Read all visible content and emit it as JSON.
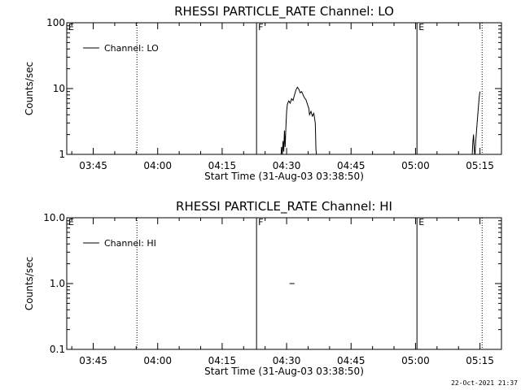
{
  "footer": {
    "timestamp": "22-Oct-2021 21:37"
  },
  "chart_data": [
    {
      "type": "line",
      "title": "RHESSI PARTICLE_RATE Channel: LO",
      "xlabel": "Start Time (31-Aug-03 03:38:50)",
      "ylabel": "Counts/sec",
      "yscale": "log",
      "ylim": [
        1,
        100
      ],
      "y_ticks": [
        1,
        10,
        100
      ],
      "y_tick_labels": [
        "1",
        "10",
        "100"
      ],
      "xlim": [
        "03:38:50",
        "05:20:00"
      ],
      "x_ticks": [
        "03:45",
        "04:00",
        "04:15",
        "04:30",
        "04:45",
        "05:00",
        "05:15"
      ],
      "legend": {
        "position": "top-left",
        "entries": [
          "Channel: LO"
        ]
      },
      "annotations": [
        {
          "time": "03:38:50",
          "label": "E",
          "style": "solid"
        },
        {
          "time": "03:55:10",
          "label": "",
          "style": "dotted"
        },
        {
          "time": "04:23:00",
          "label": "F",
          "style": "solid"
        },
        {
          "time": "05:00:20",
          "label": "E",
          "style": "solid"
        },
        {
          "time": "05:15:30",
          "label": "",
          "style": "dotted"
        }
      ],
      "series": [
        {
          "segments": [
            [
              [
                "04:28:40",
                0.9
              ],
              [
                "04:28:50",
                1.3
              ],
              [
                "04:29:00",
                1.0
              ],
              [
                "04:29:10",
                1.6
              ],
              [
                "04:29:20",
                1.1
              ],
              [
                "04:29:30",
                2.3
              ],
              [
                "04:29:40",
                1.3
              ],
              [
                "04:29:50",
                2.6
              ],
              [
                "04:30:00",
                4.5
              ],
              [
                "04:30:10",
                5.8
              ],
              [
                "04:30:30",
                6.5
              ],
              [
                "04:30:50",
                6.0
              ],
              [
                "04:31:10",
                7.0
              ],
              [
                "04:31:30",
                6.6
              ],
              [
                "04:31:50",
                8.0
              ],
              [
                "04:32:10",
                9.5
              ],
              [
                "04:32:30",
                10.5
              ],
              [
                "04:32:50",
                9.8
              ],
              [
                "04:33:10",
                8.6
              ],
              [
                "04:33:30",
                9.0
              ],
              [
                "04:33:50",
                8.0
              ],
              [
                "04:34:10",
                7.2
              ],
              [
                "04:34:30",
                6.8
              ],
              [
                "04:34:50",
                5.8
              ],
              [
                "04:35:10",
                5.0
              ],
              [
                "04:35:20",
                4.0
              ],
              [
                "04:35:40",
                4.5
              ],
              [
                "04:36:00",
                3.8
              ],
              [
                "04:36:20",
                4.2
              ],
              [
                "04:36:40",
                3.0
              ],
              [
                "04:36:50",
                1.2
              ],
              [
                "04:37:00",
                0.9
              ]
            ],
            [
              [
                "05:13:10",
                0.9
              ],
              [
                "05:13:20",
                1.5
              ],
              [
                "05:13:30",
                2.0
              ],
              [
                "05:13:40",
                1.2
              ],
              [
                "05:13:50",
                0.9
              ],
              [
                "05:14:00",
                1.5
              ],
              [
                "05:14:20",
                3.0
              ],
              [
                "05:14:40",
                5.5
              ],
              [
                "05:14:50",
                7.5
              ],
              [
                "05:15:00",
                9.0
              ]
            ]
          ]
        }
      ]
    },
    {
      "type": "line",
      "title": "RHESSI PARTICLE_RATE Channel: HI",
      "xlabel": "Start Time (31-Aug-03 03:38:50)",
      "ylabel": "Counts/sec",
      "yscale": "log",
      "ylim": [
        0.1,
        10
      ],
      "y_ticks": [
        0.1,
        1,
        10
      ],
      "y_tick_labels": [
        "0.1",
        "1.0",
        "10.0"
      ],
      "xlim": [
        "03:38:50",
        "05:20:00"
      ],
      "x_ticks": [
        "03:45",
        "04:00",
        "04:15",
        "04:30",
        "04:45",
        "05:00",
        "05:15"
      ],
      "legend": {
        "position": "top-left",
        "entries": [
          "Channel: HI"
        ]
      },
      "annotations": [
        {
          "time": "03:38:50",
          "label": "E",
          "style": "solid"
        },
        {
          "time": "03:55:10",
          "label": "",
          "style": "dotted"
        },
        {
          "time": "04:23:00",
          "label": "F",
          "style": "solid"
        },
        {
          "time": "05:00:20",
          "label": "E",
          "style": "solid"
        },
        {
          "time": "05:15:30",
          "label": "",
          "style": "dotted"
        }
      ],
      "series": [
        {
          "segments": [
            [
              [
                "04:30:40",
                1.0
              ],
              [
                "04:31:50",
                1.0
              ]
            ]
          ]
        }
      ]
    }
  ]
}
